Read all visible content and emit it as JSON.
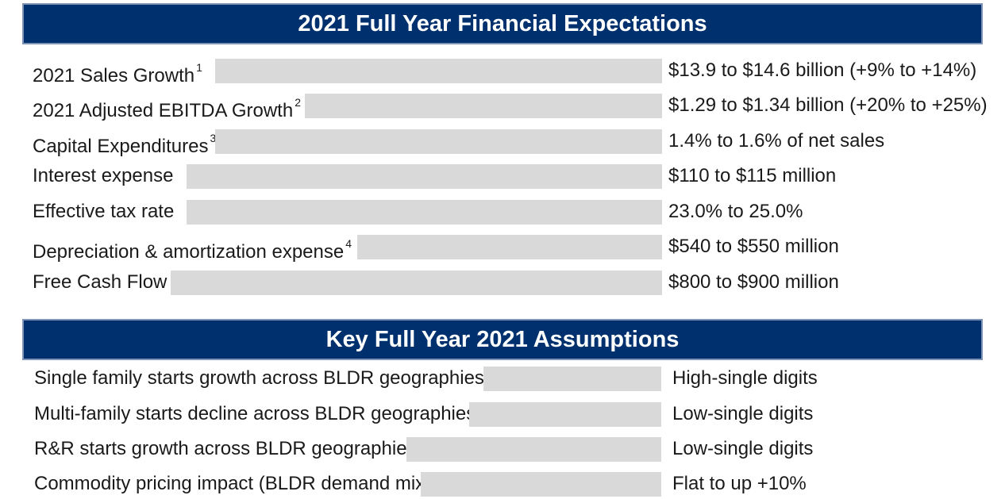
{
  "financials": {
    "title": "2021 Full Year Financial Expectations",
    "rows": [
      {
        "label": "2021 Sales Growth",
        "footnote": "1",
        "value": "$13.9 to $14.6 billion (+9% to +14%)"
      },
      {
        "label": "2021 Adjusted EBITDA Growth",
        "footnote": "2",
        "value": "$1.29 to $1.34 billion (+20% to +25%)"
      },
      {
        "label": "Capital Expenditures",
        "footnote": "3",
        "value": "1.4% to 1.6% of net sales"
      },
      {
        "label": "Interest expense",
        "footnote": "",
        "value": "$110 to $115 million"
      },
      {
        "label": "Effective tax rate",
        "footnote": "",
        "value": "23.0% to 25.0%"
      },
      {
        "label": "Depreciation & amortization expense",
        "footnote": "4",
        "value": "$540 to $550 million"
      },
      {
        "label": "Free Cash Flow",
        "footnote": "",
        "value": "$800 to $900 million"
      }
    ]
  },
  "assumptions": {
    "title": "Key Full Year 2021 Assumptions",
    "rows": [
      {
        "label": "Single family starts growth across BLDR geographies",
        "value": "High-single digits"
      },
      {
        "label": "Multi-family starts decline across BLDR geographies",
        "value": "Low-single digits"
      },
      {
        "label": "R&R starts growth across BLDR geographies",
        "value": "Low-single digits"
      },
      {
        "label": "Commodity pricing impact (BLDR demand mix)",
        "value": "Flat to up +10%"
      }
    ]
  }
}
